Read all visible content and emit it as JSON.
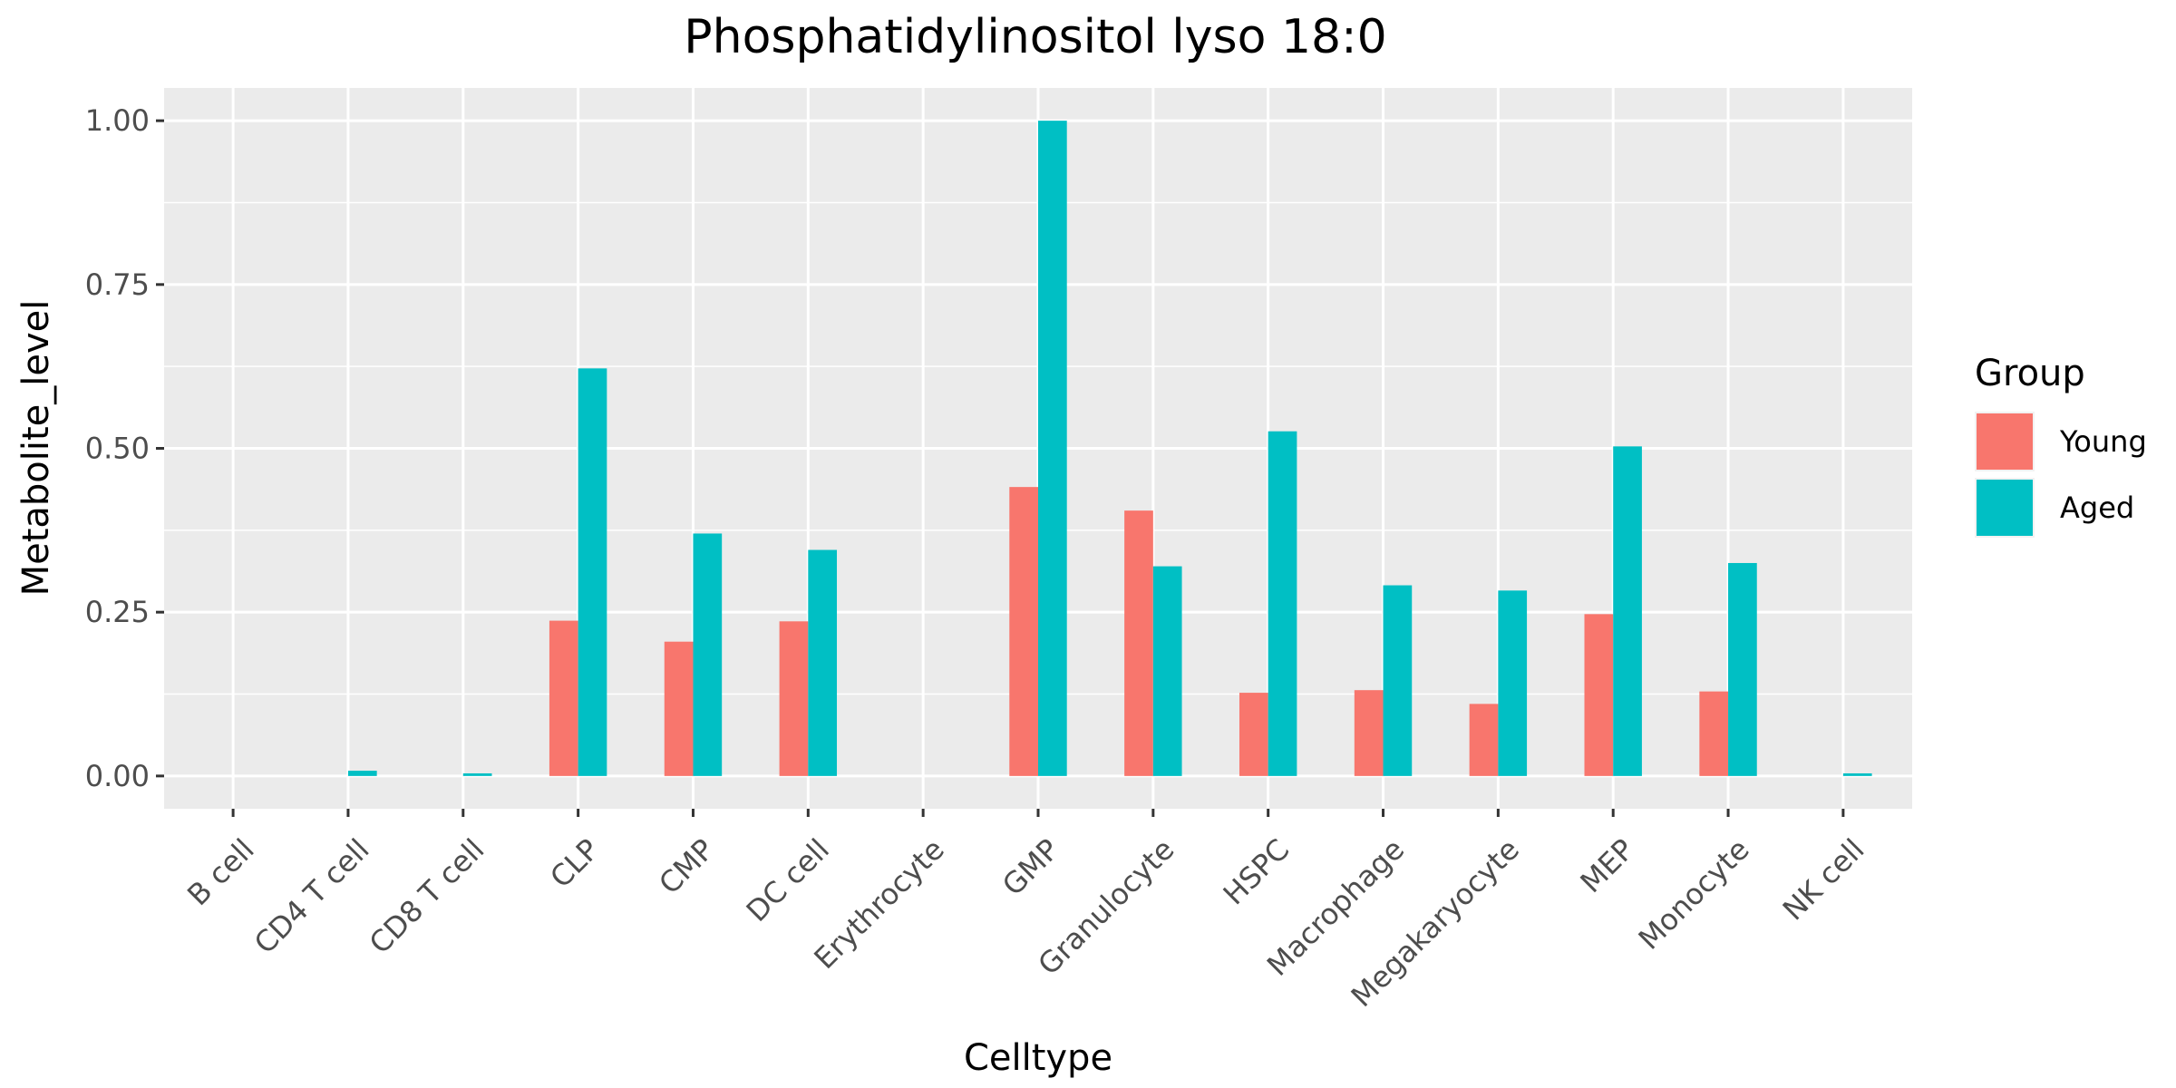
{
  "chart_data": {
    "type": "bar",
    "title": "Phosphatidylinositol lyso 18:0",
    "xlabel": "Celltype",
    "ylabel": "Metabolite_level",
    "categories": [
      "B cell",
      "CD4 T cell",
      "CD8 T cell",
      "CLP",
      "CMP",
      "DC cell",
      "Erythrocyte",
      "GMP",
      "Granulocyte",
      "HSPC",
      "Macrophage",
      "Megakaryocyte",
      "MEP",
      "Monocyte",
      "NK cell"
    ],
    "series": [
      {
        "name": "Young",
        "color": "#F8766D",
        "values": [
          0,
          0,
          0,
          0.237,
          0.205,
          0.236,
          0,
          0.441,
          0.405,
          0.127,
          0.131,
          0.11,
          0.247,
          0.129,
          0
        ]
      },
      {
        "name": "Aged",
        "color": "#00BFC4",
        "values": [
          0,
          0.008,
          0.004,
          0.622,
          0.37,
          0.345,
          0,
          1.0,
          0.32,
          0.526,
          0.291,
          0.283,
          0.503,
          0.325,
          0.004
        ]
      }
    ],
    "ylim": [
      -0.05,
      1.05
    ],
    "yticks": [
      0,
      0.25,
      0.5,
      0.75,
      1
    ],
    "ytick_labels": [
      "0.00",
      "0.25",
      "0.50",
      "0.75",
      "1.00"
    ],
    "grid": true,
    "legend": {
      "title": "Group",
      "position": "right"
    },
    "panel_background": "#EBEBEB",
    "grid_color": "#FFFFFF"
  }
}
